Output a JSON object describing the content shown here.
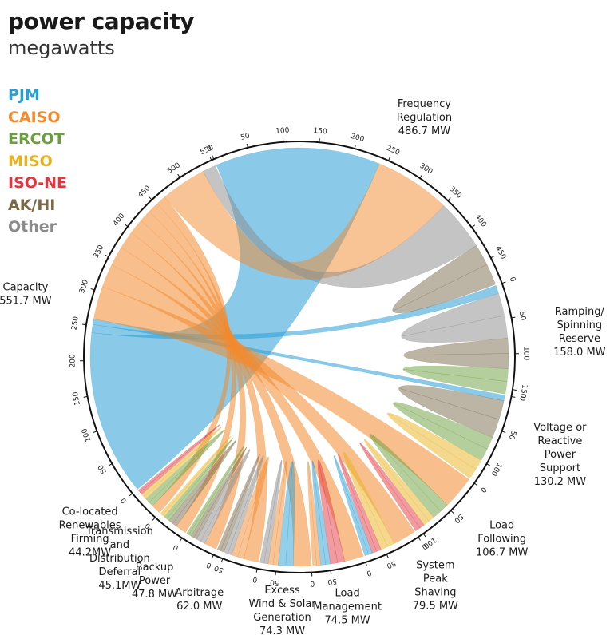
{
  "chart_data": {
    "type": "chord",
    "title": "power capacity",
    "subtitle": "megawatts",
    "legend": [
      {
        "name": "PJM",
        "color": "#2a9fd6"
      },
      {
        "name": "CAISO",
        "color": "#f28a2e"
      },
      {
        "name": "ERCOT",
        "color": "#6a9f3c"
      },
      {
        "name": "MISO",
        "color": "#e8b11e"
      },
      {
        "name": "ISO-NE",
        "color": "#e2373f"
      },
      {
        "name": "AK/HI",
        "color": "#7a6a4a"
      },
      {
        "name": "Other",
        "color": "#8a8a8a"
      }
    ],
    "categories": [
      {
        "name": "Frequency Regulation",
        "value": 486.7,
        "lines": [
          "Frequency",
          "Regulation",
          "486.7 MW"
        ]
      },
      {
        "name": "Ramping/Spinning Reserve",
        "value": 158.0,
        "lines": [
          "Ramping/",
          "Spinning",
          "Reserve",
          "158.0 MW"
        ]
      },
      {
        "name": "Voltage or Reactive Power Support",
        "value": 130.2,
        "lines": [
          "Voltage or",
          "Reactive",
          "Power",
          "Support",
          "130.2 MW"
        ]
      },
      {
        "name": "Load Following",
        "value": 106.7,
        "lines": [
          "Load",
          "Following",
          "106.7 MW"
        ]
      },
      {
        "name": "System Peak Shaving",
        "value": 79.5,
        "lines": [
          "System",
          "Peak",
          "Shaving",
          "79.5 MW"
        ]
      },
      {
        "name": "Load Management",
        "value": 74.5,
        "lines": [
          "Load",
          "Management",
          "74.5 MW"
        ]
      },
      {
        "name": "Excess Wind & Solar Generation",
        "value": 74.3,
        "lines": [
          "Excess",
          "Wind & Solar",
          "Generation",
          "74.3 MW"
        ]
      },
      {
        "name": "Arbitrage",
        "value": 62.0,
        "lines": [
          "Arbitrage",
          "62.0 MW"
        ]
      },
      {
        "name": "Backup Power",
        "value": 47.8,
        "lines": [
          "Backup",
          "Power",
          "47.8 MW"
        ]
      },
      {
        "name": "Transmission and Distribution Deferral",
        "value": 45.1,
        "lines": [
          "Transmission",
          "and",
          "Distribution",
          "Deferral",
          "45.1MW"
        ]
      },
      {
        "name": "Co-located Renewables Firming",
        "value": 44.2,
        "lines": [
          "Co-located",
          "Renewables",
          "Firming",
          "44.2MW"
        ]
      },
      {
        "name": "Capacity",
        "value": 551.7,
        "lines": [
          "Capacity",
          "551.7 MW"
        ]
      }
    ],
    "flows_from_capacity": [
      {
        "to": "Frequency Regulation",
        "region": "PJM",
        "value": 240
      },
      {
        "to": "Ramping/Spinning Reserve",
        "region": "PJM",
        "value": 12
      },
      {
        "to": "Voltage or Reactive Power Support",
        "region": "PJM",
        "value": 8
      },
      {
        "to": "Load Following",
        "region": "CAISO",
        "value": 48
      },
      {
        "to": "System Peak Shaving",
        "region": "CAISO",
        "value": 34
      },
      {
        "to": "Load Management",
        "region": "CAISO",
        "value": 28
      },
      {
        "to": "Excess Wind & Solar Generation",
        "region": "CAISO",
        "value": 26
      },
      {
        "to": "Arbitrage",
        "region": "CAISO",
        "value": 22
      },
      {
        "to": "Backup Power",
        "region": "CAISO",
        "value": 18
      },
      {
        "to": "Transmission and Distribution Deferral",
        "region": "CAISO",
        "value": 16
      },
      {
        "to": "Co-located Renewables Firming",
        "region": "CAISO",
        "value": 14
      }
    ]
  }
}
